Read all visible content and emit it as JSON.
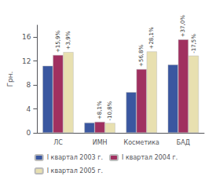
{
  "chart_data": {
    "type": "bar",
    "categories": [
      "ЛС",
      "ИМН",
      "Косметика",
      "БАД"
    ],
    "series": [
      {
        "name": "I квартал 2003 г.",
        "color": "#3a57a0",
        "values": [
          11.2,
          1.7,
          6.8,
          11.4
        ]
      },
      {
        "name": "I квартал 2004 г.",
        "color": "#a03060",
        "values": [
          13.0,
          1.84,
          10.65,
          15.6
        ],
        "annotations": [
          "+15,9%",
          "+8,1%",
          "+56,8%",
          "+37,0%"
        ]
      },
      {
        "name": "I квартал 2005 г.",
        "color": "#e8e0b0",
        "values": [
          13.5,
          1.64,
          13.6,
          12.9
        ],
        "annotations": [
          "+3,9%",
          "-10,8%",
          "+28,1%",
          "-17,5%"
        ]
      }
    ],
    "ylabel": "Грн.",
    "ylim": [
      0,
      18
    ],
    "yticks": [
      0,
      4,
      8,
      12,
      16
    ],
    "grid": false,
    "legend": "bottom"
  }
}
